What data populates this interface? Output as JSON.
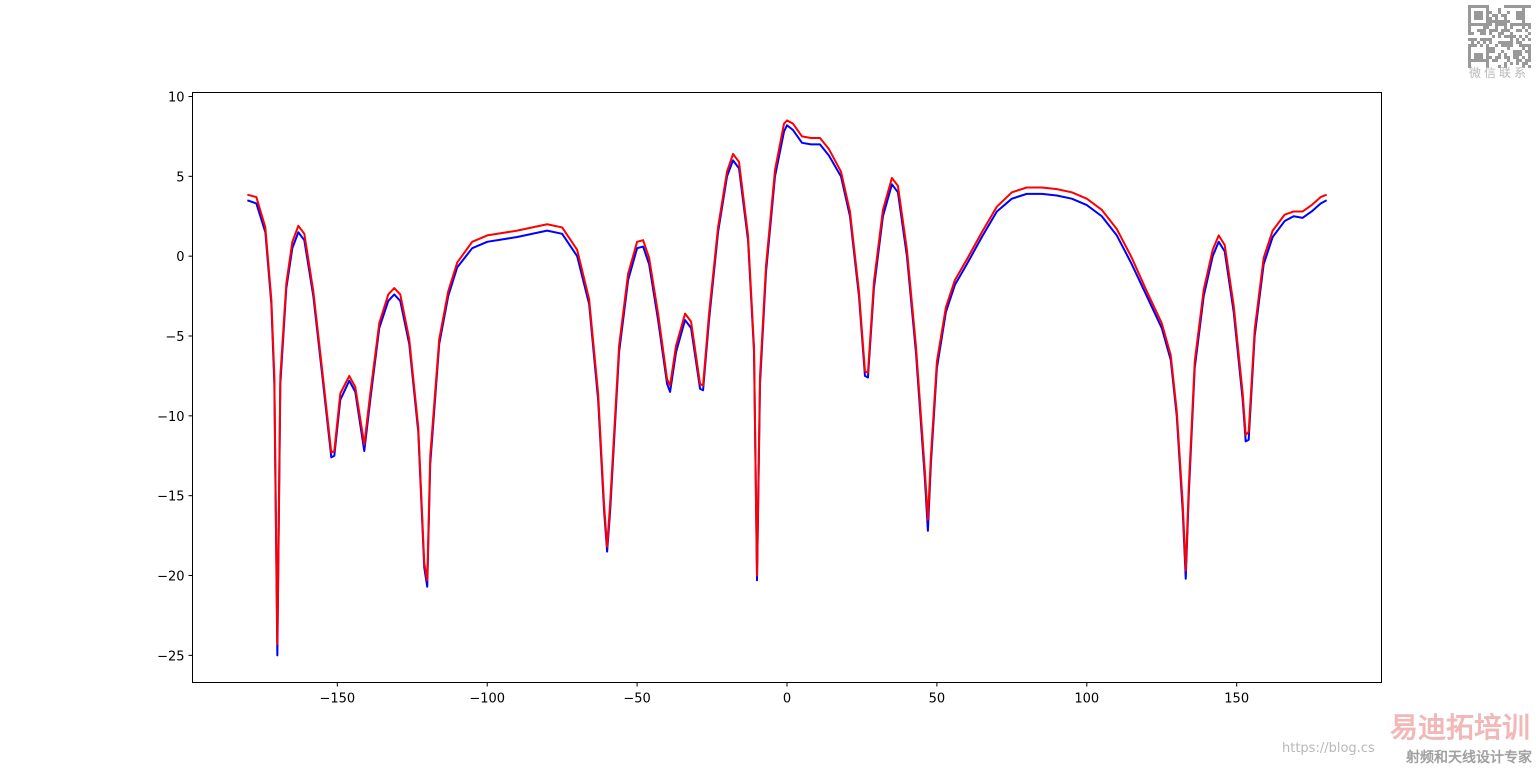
{
  "chart_data": {
    "type": "line",
    "x": [
      -180,
      -177,
      -174,
      -172,
      -171,
      -170,
      -169,
      -167,
      -165,
      -163,
      -161,
      -158,
      -155,
      -152,
      -151,
      -149,
      -146,
      -144,
      -141,
      -139,
      -136,
      -133,
      -131,
      -129,
      -126,
      -123,
      -121,
      -120,
      -119,
      -116,
      -113,
      -110,
      -105,
      -100,
      -90,
      -80,
      -75,
      -70,
      -66,
      -63,
      -61,
      -60,
      -59,
      -56,
      -53,
      -50,
      -48,
      -46,
      -43,
      -40,
      -39,
      -37,
      -34,
      -32,
      -29,
      -28,
      -26,
      -23,
      -20,
      -18,
      -16,
      -13,
      -11,
      -10,
      -9,
      -7,
      -4,
      -1,
      0,
      2,
      5,
      8,
      11,
      14,
      18,
      21,
      24,
      26,
      27,
      29,
      32,
      35,
      37,
      40,
      43,
      46,
      47,
      48,
      50,
      53,
      56,
      60,
      65,
      70,
      75,
      80,
      85,
      90,
      95,
      100,
      105,
      110,
      115,
      120,
      125,
      128,
      130,
      132,
      133,
      134,
      136,
      139,
      142,
      144,
      146,
      149,
      152,
      153,
      154,
      156,
      159,
      162,
      166,
      169,
      172,
      175,
      178,
      180
    ],
    "series": [
      {
        "color": "#0000ff",
        "values": [
          3.5,
          3.3,
          1.5,
          -3,
          -8,
          -25,
          -8,
          -2,
          0.5,
          1.5,
          1,
          -2.5,
          -7.5,
          -12.6,
          -12.5,
          -9,
          -7.8,
          -8.5,
          -12.2,
          -9,
          -4.5,
          -2.8,
          -2.4,
          -2.8,
          -5.5,
          -11,
          -19.5,
          -20.7,
          -13,
          -5.5,
          -2.5,
          -0.7,
          0.5,
          0.9,
          1.2,
          1.6,
          1.4,
          0,
          -3,
          -9,
          -16,
          -18.5,
          -16,
          -6,
          -1.5,
          0.5,
          0.6,
          -0.5,
          -4,
          -8,
          -8.5,
          -6,
          -4,
          -4.5,
          -8.3,
          -8.4,
          -4,
          1.5,
          5,
          6,
          5.5,
          1,
          -6,
          -20.3,
          -8,
          -1,
          5,
          7.8,
          8.2,
          7.9,
          7.1,
          7.0,
          7.0,
          6.3,
          5,
          2.5,
          -2.5,
          -7.5,
          -7.6,
          -2,
          2.5,
          4.5,
          4,
          0,
          -6,
          -14,
          -17.2,
          -13,
          -7,
          -3.5,
          -1.8,
          -0.5,
          1.2,
          2.8,
          3.6,
          3.9,
          3.9,
          3.8,
          3.6,
          3.2,
          2.5,
          1.3,
          -0.5,
          -2.5,
          -4.5,
          -6.5,
          -10,
          -16,
          -20.2,
          -15,
          -7,
          -2.5,
          0,
          0.9,
          0.3,
          -3.5,
          -9,
          -11.6,
          -11.5,
          -5,
          -0.5,
          1.2,
          2.2,
          2.5,
          2.4,
          2.8,
          3.3,
          3.5
        ]
      },
      {
        "color": "#ff0000",
        "values": [
          3.85,
          3.7,
          1.8,
          -2.7,
          -7.5,
          -24.3,
          -7.5,
          -1.7,
          0.9,
          1.9,
          1.4,
          -2.2,
          -7.2,
          -12.3,
          -12.2,
          -8.6,
          -7.5,
          -8.2,
          -11.8,
          -8.6,
          -4.2,
          -2.4,
          -2.0,
          -2.4,
          -5.2,
          -10.7,
          -19.2,
          -20.3,
          -12.5,
          -5.2,
          -2.2,
          -0.4,
          0.9,
          1.3,
          1.6,
          2.0,
          1.8,
          0.4,
          -2.7,
          -8.6,
          -15.6,
          -18.2,
          -15.5,
          -5.6,
          -1.1,
          0.9,
          1.0,
          -0.1,
          -3.6,
          -7.7,
          -8.1,
          -5.6,
          -3.6,
          -4.1,
          -8,
          -8.1,
          -3.6,
          1.8,
          5.3,
          6.4,
          5.9,
          1.3,
          -5.7,
          -20,
          -7.5,
          -0.6,
          5.4,
          8.3,
          8.5,
          8.3,
          7.5,
          7.4,
          7.4,
          6.7,
          5.3,
          2.8,
          -2.2,
          -7.2,
          -7.3,
          -1.6,
          2.9,
          4.9,
          4.4,
          0.4,
          -5.6,
          -13.5,
          -16.5,
          -12.5,
          -6.6,
          -3.2,
          -1.5,
          -0.2,
          1.5,
          3.1,
          4.0,
          4.3,
          4.3,
          4.2,
          4.0,
          3.6,
          2.9,
          1.7,
          -0.1,
          -2.2,
          -4.2,
          -6.2,
          -9.7,
          -15.5,
          -19.7,
          -14.5,
          -6.6,
          -2.1,
          0.4,
          1.3,
          0.7,
          -3.1,
          -8.6,
          -11.2,
          -11,
          -4.6,
          -0.1,
          1.6,
          2.6,
          2.8,
          2.8,
          3.2,
          3.7,
          3.85
        ]
      }
    ],
    "xlim": [
      -198.3,
      198.3
    ],
    "ylim": [
      -26.7,
      10.25
    ],
    "xticks": [
      {
        "value": -150,
        "label": "−150"
      },
      {
        "value": -100,
        "label": "−100"
      },
      {
        "value": -50,
        "label": "−50"
      },
      0,
      50,
      100,
      150
    ],
    "yticks": [
      10,
      5,
      0,
      {
        "value": -5,
        "label": "−5"
      },
      {
        "value": -10,
        "label": "−10"
      },
      {
        "value": -15,
        "label": "−15"
      },
      {
        "value": -20,
        "label": "−20"
      },
      {
        "value": -25,
        "label": "−25"
      }
    ],
    "grid": false
  },
  "watermark": {
    "qr_caption": "微信联系",
    "brand": "易迪拓培训",
    "slogan": "射频和天线设计专家",
    "url": "https://blog.cs"
  }
}
